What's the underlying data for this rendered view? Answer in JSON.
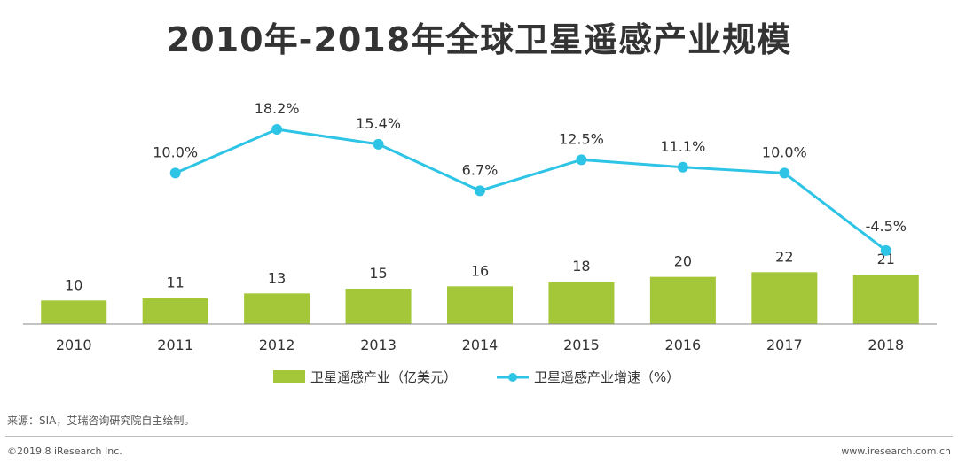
{
  "chart_data": {
    "type": "bar+line",
    "title": "2010年-2018年全球卫星遥感产业规模",
    "categories": [
      "2010",
      "2011",
      "2012",
      "2013",
      "2014",
      "2015",
      "2016",
      "2017",
      "2018"
    ],
    "series": [
      {
        "name": "卫星遥感产业（亿美元）",
        "type": "bar",
        "color": "#a4c639",
        "values": [
          10,
          11,
          13,
          15,
          16,
          18,
          20,
          22,
          21
        ],
        "labels": [
          "10",
          "11",
          "13",
          "15",
          "16",
          "18",
          "20",
          "22",
          "21"
        ]
      },
      {
        "name": "卫星遥感产业增速（%）",
        "type": "line",
        "color": "#2ec4e6",
        "values": [
          null,
          10.0,
          18.2,
          15.4,
          6.7,
          12.5,
          11.1,
          10.0,
          -4.5
        ],
        "labels": [
          "",
          "10.0%",
          "18.2%",
          "15.4%",
          "6.7%",
          "12.5%",
          "11.1%",
          "10.0%",
          "-4.5%"
        ]
      }
    ],
    "bar_axis_range": [
      0,
      60
    ],
    "line_axis_range": [
      -10,
      25
    ],
    "grid": false,
    "legend_position": "bottom"
  },
  "footer": {
    "source": "来源：SIA，艾瑞咨询研究院自主绘制。",
    "copyright": "©2019.8 iResearch Inc.",
    "website": "www.iresearch.com.cn"
  }
}
